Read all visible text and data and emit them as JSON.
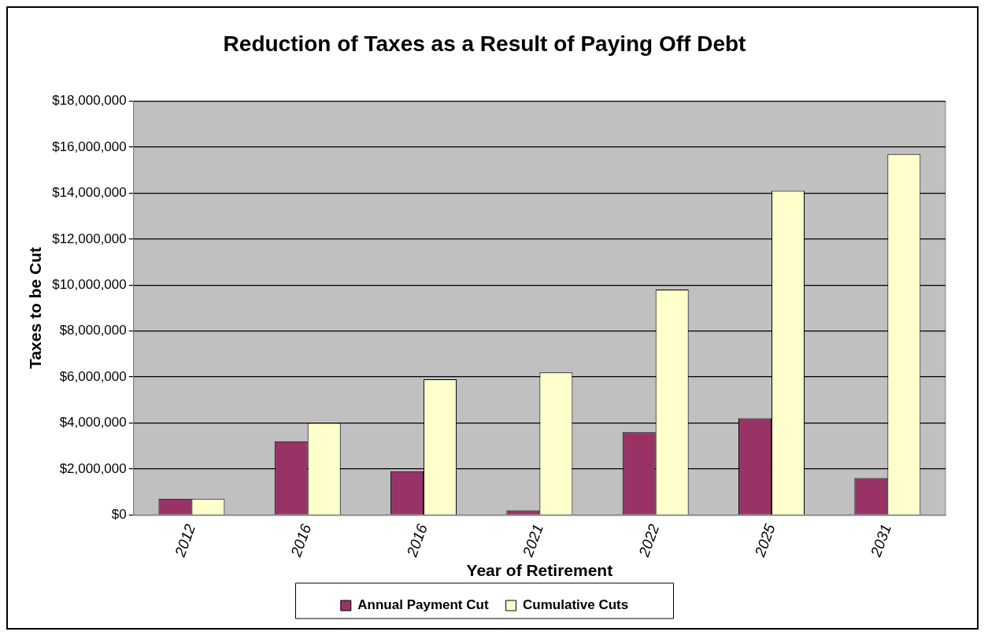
{
  "chart_data": {
    "type": "bar",
    "title": "Reduction of Taxes as a Result of Paying Off Debt",
    "xlabel": "Year of Retirement",
    "ylabel": "Taxes to be Cut",
    "categories": [
      "2012",
      "2016",
      "2016",
      "2021",
      "2022",
      "2025",
      "2031"
    ],
    "series": [
      {
        "name": "Annual Payment Cut",
        "color": "#993366",
        "values": [
          700000,
          3200000,
          1900000,
          200000,
          3600000,
          4200000,
          1600000
        ]
      },
      {
        "name": "Cumulative Cuts",
        "color": "#ffffcc",
        "values": [
          700000,
          4000000,
          5900000,
          6200000,
          9800000,
          14100000,
          15700000
        ]
      }
    ],
    "ylim": [
      0,
      18000000
    ],
    "yticks": [
      {
        "value": 0,
        "label": "$0"
      },
      {
        "value": 2000000,
        "label": "$2,000,000"
      },
      {
        "value": 4000000,
        "label": "$4,000,000"
      },
      {
        "value": 6000000,
        "label": "$6,000,000"
      },
      {
        "value": 8000000,
        "label": "$8,000,000"
      },
      {
        "value": 10000000,
        "label": "$10,000,000"
      },
      {
        "value": 12000000,
        "label": "$12,000,000"
      },
      {
        "value": 14000000,
        "label": "$14,000,000"
      },
      {
        "value": 16000000,
        "label": "$16,000,000"
      },
      {
        "value": 18000000,
        "label": "$18,000,000"
      }
    ],
    "grid": "y",
    "legend": "bottom"
  }
}
